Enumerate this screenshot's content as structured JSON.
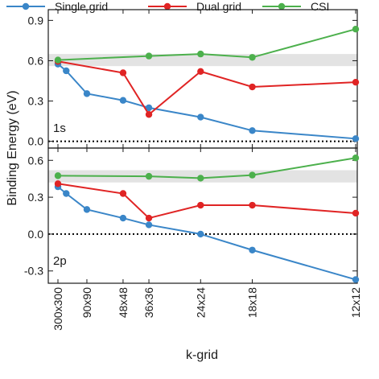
{
  "chart_data": {
    "type": "line",
    "ylabel": "Binding Energy (eV)",
    "xlabel": "k-grid",
    "grid": false,
    "legend_position": "top",
    "x_tick_labels": [
      "300x300",
      "90x90",
      "48x48",
      "36x36",
      "24x24",
      "18x18",
      "12x12"
    ],
    "x_tick_positions": [
      300,
      90,
      48,
      36,
      24,
      18,
      12
    ],
    "x_axis_scale": "reciprocal",
    "series_colors": {
      "Single grid": "#3a86c8",
      "Dual grid": "#e02424",
      "CSI": "#4cb04c"
    },
    "panels": [
      {
        "label": "1s",
        "ylim": [
          -0.05,
          0.98
        ],
        "yticks": [
          0.0,
          0.3,
          0.6,
          0.9
        ],
        "ytick_labels": [
          "0.0",
          "0.3",
          "0.6",
          "0.9"
        ],
        "reference_band": [
          0.56,
          0.65
        ],
        "zero_line": true,
        "series": [
          {
            "name": "Single grid",
            "x": [
              300,
              180,
              90,
              48,
              36,
              24,
              18,
              12
            ],
            "y": [
              0.575,
              0.525,
              0.355,
              0.305,
              0.25,
              0.18,
              0.08,
              0.02
            ]
          },
          {
            "name": "Dual grid",
            "x": [
              300,
              48,
              36,
              24,
              18,
              12
            ],
            "y": [
              0.595,
              0.51,
              0.2,
              0.52,
              0.405,
              0.44
            ]
          },
          {
            "name": "CSI",
            "x": [
              300,
              36,
              24,
              18,
              12
            ],
            "y": [
              0.605,
              0.635,
              0.65,
              0.625,
              0.835
            ]
          }
        ]
      },
      {
        "label": "2p",
        "ylim": [
          -0.4,
          0.7
        ],
        "yticks": [
          -0.3,
          0.0,
          0.3,
          0.6
        ],
        "ytick_labels": [
          "-0.3",
          "0.0",
          "0.3",
          "0.6"
        ],
        "reference_band": [
          0.42,
          0.52
        ],
        "zero_line": true,
        "series": [
          {
            "name": "Single grid",
            "x": [
              300,
              180,
              90,
              48,
              36,
              24,
              18,
              12
            ],
            "y": [
              0.385,
              0.33,
              0.2,
              0.13,
              0.075,
              0.0,
              -0.13,
              -0.37
            ]
          },
          {
            "name": "Dual grid",
            "x": [
              300,
              48,
              36,
              24,
              18,
              12
            ],
            "y": [
              0.41,
              0.33,
              0.13,
              0.235,
              0.235,
              0.17
            ]
          },
          {
            "name": "CSI",
            "x": [
              300,
              36,
              24,
              18,
              12
            ],
            "y": [
              0.475,
              0.47,
              0.455,
              0.48,
              0.62
            ]
          }
        ]
      }
    ]
  }
}
